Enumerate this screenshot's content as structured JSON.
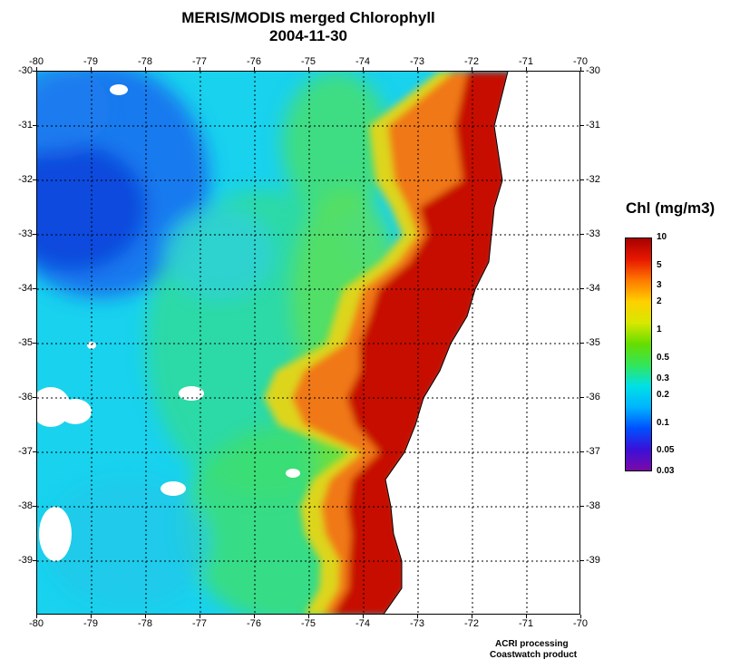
{
  "map": {
    "title": "MERIS/MODIS merged Chlorophyll",
    "date": "2004-11-30",
    "lon_range": [
      -80,
      -70
    ],
    "lat_range": [
      -40,
      -30
    ],
    "grid": "dotted",
    "top_labels": [
      "-80",
      "-79",
      "-78",
      "-77",
      "-76",
      "-75",
      "-74",
      "-73",
      "-72",
      "-71",
      "-70"
    ],
    "bottom_labels": [
      "-80",
      "-79",
      "-78",
      "-77",
      "-76",
      "-75",
      "-74",
      "-73",
      "-72",
      "-71",
      "-70"
    ],
    "left_labels": [
      "-30",
      "-31",
      "-32",
      "-33",
      "-34",
      "-35",
      "-36",
      "-37",
      "-38",
      "-39"
    ],
    "right_labels": [
      "-30",
      "-31",
      "-32",
      "-33",
      "-34",
      "-35",
      "-36",
      "-37",
      "-38",
      "-39"
    ],
    "coastline_lon_at_lat": [
      [
        -30.0,
        -71.35
      ],
      [
        -31.0,
        -71.6
      ],
      [
        -32.0,
        -71.45
      ],
      [
        -32.5,
        -71.6
      ],
      [
        -33.0,
        -71.65
      ],
      [
        -33.5,
        -71.7
      ],
      [
        -34.0,
        -71.95
      ],
      [
        -34.5,
        -72.1
      ],
      [
        -35.0,
        -72.4
      ],
      [
        -35.5,
        -72.6
      ],
      [
        -36.0,
        -72.9
      ],
      [
        -36.5,
        -73.05
      ],
      [
        -37.0,
        -73.25
      ],
      [
        -37.5,
        -73.6
      ],
      [
        -38.0,
        -73.5
      ],
      [
        -38.5,
        -73.45
      ],
      [
        -39.0,
        -73.3
      ],
      [
        -39.5,
        -73.3
      ],
      [
        -40.0,
        -73.65
      ]
    ]
  },
  "legend": {
    "title": "Chl (mg/m3)",
    "scale": "log",
    "range": [
      0.03,
      10
    ],
    "colors": [
      "#7b0aa8",
      "#3a10d8",
      "#0050ff",
      "#00b4ff",
      "#00e0e6",
      "#33e659",
      "#66dd00",
      "#d8e800",
      "#ffd000",
      "#ff7a00",
      "#e81800",
      "#a80000"
    ],
    "labels": [
      "10",
      "5",
      "3",
      "2",
      "1",
      "0.5",
      "0.3",
      "0.2",
      "0.1",
      "0.05",
      "0.03"
    ]
  },
  "credits": {
    "line1": "ACRI processing",
    "line2": "Coastwatch product"
  }
}
